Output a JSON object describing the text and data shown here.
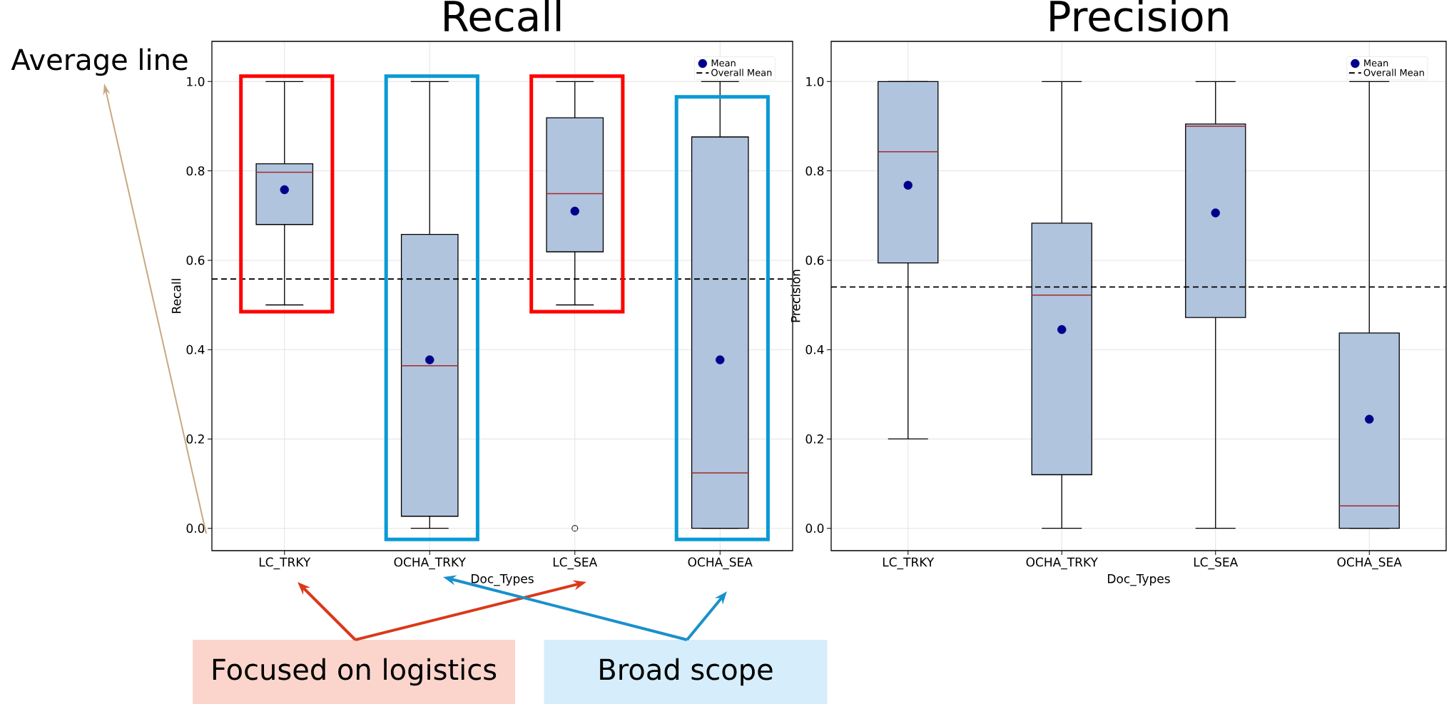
{
  "chart_data": [
    {
      "type": "box",
      "title": "Recall",
      "xlabel": "Doc_Types",
      "ylabel": "Recall",
      "categories": [
        "LC_TRKY",
        "OCHA_TRKY",
        "LC_SEA",
        "OCHA_SEA"
      ],
      "ylim": [
        -0.05,
        1.09
      ],
      "yticks": [
        {
          "value": 0,
          "label": "0.0"
        },
        {
          "value": 0.2,
          "label": "0.2"
        },
        {
          "value": 0.4,
          "label": "0.4"
        },
        {
          "value": 0.6,
          "label": "0.6"
        },
        {
          "value": 0.8,
          "label": "0.8"
        },
        {
          "value": 1,
          "label": "1.0"
        }
      ],
      "grid": true,
      "legend": "top right",
      "series": [
        {
          "type": "box",
          "color": "#b0c4de",
          "boxes": [
            {
              "low": 0.5,
              "q1": 0.68,
              "median": 0.797,
              "q3": 0.816,
              "high": 1.0
            },
            {
              "low": 0,
              "q1": 0.027,
              "median": 0.364,
              "q3": 0.658,
              "high": 1.0
            },
            {
              "low": 0.5,
              "q1": 0.619,
              "median": 0.749,
              "q3": 0.919,
              "high": 1.0,
              "outliers": [
                0
              ]
            },
            {
              "low": 0,
              "q1": 0,
              "median": 0.124,
              "q3": 0.876,
              "high": 1.0
            }
          ]
        },
        {
          "type": "scatter",
          "name": "Mean",
          "color": "#00008b",
          "x": [
            "LC_TRKY",
            "OCHA_TRKY",
            "LC_SEA",
            "OCHA_SEA"
          ],
          "values": [
            0.758,
            0.377,
            0.71,
            0.377
          ]
        }
      ],
      "ref_lines": [
        {
          "axis": "y",
          "value": 0.558,
          "label": "Overall Mean",
          "color": "#000000",
          "line_style": "dashed"
        }
      ],
      "annotations": [
        "Average line",
        "Focused on logistics",
        "Broad scope"
      ]
    },
    {
      "type": "box",
      "title": "Precision",
      "xlabel": "Doc_Types",
      "ylabel": "Precision",
      "categories": [
        "LC_TRKY",
        "OCHA_TRKY",
        "LC_SEA",
        "OCHA_SEA"
      ],
      "ylim": [
        -0.05,
        1.09
      ],
      "yticks": [
        {
          "value": 0,
          "label": "0.0"
        },
        {
          "value": 0.2,
          "label": "0.2"
        },
        {
          "value": 0.4,
          "label": "0.4"
        },
        {
          "value": 0.6,
          "label": "0.6"
        },
        {
          "value": 0.8,
          "label": "0.8"
        },
        {
          "value": 1,
          "label": "1.0"
        }
      ],
      "grid": true,
      "legend": "top right",
      "series": [
        {
          "type": "box",
          "color": "#b0c4de",
          "boxes": [
            {
              "low": 0.2,
              "q1": 0.594,
              "median": 0.843,
              "q3": 1.0,
              "high": 1.0
            },
            {
              "low": 0,
              "q1": 0.12,
              "median": 0.522,
              "q3": 0.683,
              "high": 1.0
            },
            {
              "low": 0,
              "q1": 0.472,
              "median": 0.9,
              "q3": 0.905,
              "high": 1.0
            },
            {
              "low": 0,
              "q1": 0,
              "median": 0.05,
              "q3": 0.437,
              "high": 1.0
            }
          ]
        },
        {
          "type": "scatter",
          "name": "Mean",
          "color": "#00008b",
          "x": [
            "LC_TRKY",
            "OCHA_TRKY",
            "LC_SEA",
            "OCHA_SEA"
          ],
          "values": [
            0.768,
            0.445,
            0.706,
            0.244
          ]
        }
      ],
      "ref_lines": [
        {
          "axis": "y",
          "value": 0.54,
          "label": "Overall Mean",
          "color": "#000000",
          "line_style": "dashed"
        }
      ]
    }
  ]
}
